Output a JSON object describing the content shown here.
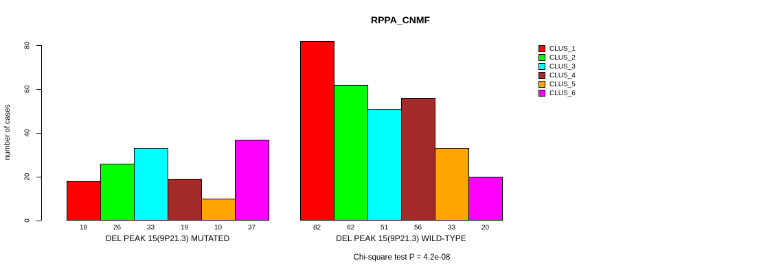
{
  "chart_data": {
    "type": "bar",
    "title": "RPPA_CNMF",
    "ylabel": "number of cases",
    "xlabel": "",
    "ylim": [
      0,
      80
    ],
    "yticks": [
      0,
      20,
      40,
      60,
      80
    ],
    "grid": false,
    "legend_position": "top-right-inside",
    "legend": [
      {
        "label": "CLUS_1",
        "color": "#FF0000"
      },
      {
        "label": "CLUS_2",
        "color": "#00FF00"
      },
      {
        "label": "CLUS_3",
        "color": "#00FFFF"
      },
      {
        "label": "CLUS_4",
        "color": "#A52A2A"
      },
      {
        "label": "CLUS_5",
        "color": "#FFA500"
      },
      {
        "label": "CLUS_6",
        "color": "#FF00FF"
      }
    ],
    "groups": [
      {
        "label": "DEL PEAK 15(9P21.3) MUTATED",
        "values": [
          18,
          26,
          33,
          19,
          10,
          37
        ]
      },
      {
        "label": "DEL PEAK 15(9P21.3) WILD-TYPE",
        "values": [
          82,
          62,
          51,
          56,
          33,
          20
        ]
      }
    ],
    "value_labels_shown": true,
    "annotation": "Chi-square test P = 4.2e-08"
  }
}
